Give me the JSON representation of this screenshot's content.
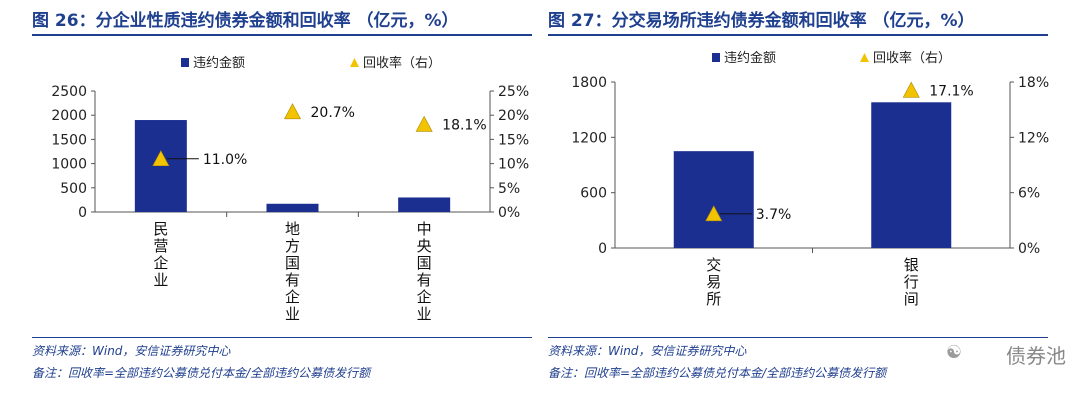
{
  "watermark": "债券池",
  "colors": {
    "bar": "#1a2f8f",
    "marker": "#f2c300",
    "marker_stroke": "#b08900",
    "title": "#1f3f8f",
    "axis": "#555555"
  },
  "chart_data": [
    {
      "type": "bar",
      "title": "图 26：分企业性质违约债券金额和回收率 （亿元，%）",
      "legend": [
        "违约金额",
        "回收率（右）"
      ],
      "legend_position": "top-center",
      "categories": [
        "民营企业",
        "地方国有企业",
        "中央国有企业"
      ],
      "category_labels": [
        [
          "民",
          "营",
          "企",
          "业"
        ],
        [
          "地",
          "方",
          "国",
          "有",
          "企",
          "业"
        ],
        [
          "中",
          "央",
          "国",
          "有",
          "企",
          "业"
        ]
      ],
      "series": [
        {
          "name": "违约金额",
          "axis": "left",
          "type": "bar",
          "values": [
            1900,
            170,
            300
          ]
        },
        {
          "name": "回收率（右）",
          "axis": "right",
          "type": "scatter",
          "values": [
            11.0,
            20.7,
            18.1
          ]
        }
      ],
      "data_labels": [
        "11.0%",
        "20.7%",
        "18.1%"
      ],
      "ylim": [
        0,
        2500
      ],
      "yticks": [
        0,
        500,
        1000,
        1500,
        2000,
        2500
      ],
      "ytick_labels": [
        "0",
        "500",
        "1000",
        "1500",
        "2000",
        "2500"
      ],
      "y2lim": [
        0,
        25
      ],
      "y2ticks": [
        0,
        5,
        10,
        15,
        20,
        25
      ],
      "y2tick_labels": [
        "0%",
        "5%",
        "10%",
        "15%",
        "20%",
        "25%"
      ],
      "source": "资料来源：Wind，安信证券研究中心",
      "note": "备注：回收率=全部违约公募债兑付本金/全部违约公募债发行额"
    },
    {
      "type": "bar",
      "title": "图 27：分交易场所违约债券金额和回收率 （亿元，%）",
      "legend": [
        "违约金额",
        "回收率（右）"
      ],
      "legend_position": "top-center",
      "categories": [
        "交易所",
        "银行间"
      ],
      "category_labels": [
        [
          "交",
          "易",
          "所"
        ],
        [
          "银",
          "行",
          "间"
        ]
      ],
      "series": [
        {
          "name": "违约金额",
          "axis": "left",
          "type": "bar",
          "values": [
            1050,
            1580
          ]
        },
        {
          "name": "回收率（右）",
          "axis": "right",
          "type": "scatter",
          "values": [
            3.7,
            17.1
          ]
        }
      ],
      "data_labels": [
        "3.7%",
        "17.1%"
      ],
      "ylim": [
        0,
        1800
      ],
      "yticks": [
        0,
        600,
        1200,
        1800
      ],
      "ytick_labels": [
        "0",
        "600",
        "1200",
        "1800"
      ],
      "y2lim": [
        0,
        18
      ],
      "y2ticks": [
        0,
        6,
        12,
        18
      ],
      "y2tick_labels": [
        "0%",
        "6%",
        "12%",
        "18%"
      ],
      "source": "资料来源：Wind，安信证券研究中心",
      "note": "备注：回收率=全部违约公募债兑付本金/全部违约公募债发行额"
    }
  ]
}
